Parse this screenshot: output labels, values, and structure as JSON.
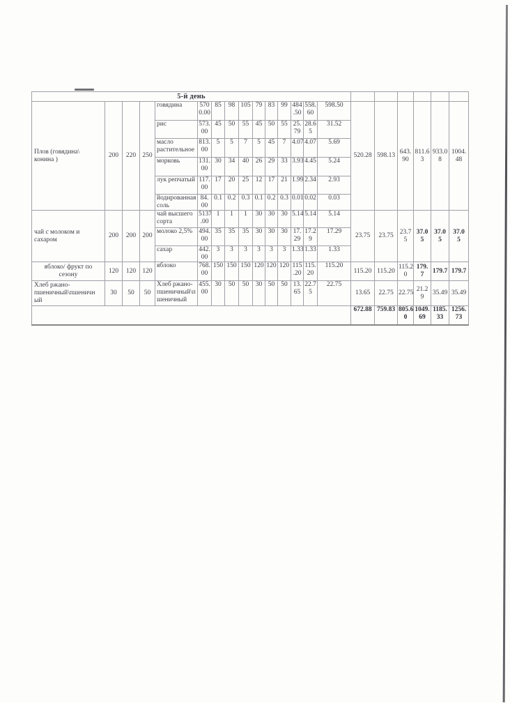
{
  "table": {
    "day_header": "5-й день",
    "groups": [
      {
        "dish": "Плов (говядина\\\nконина )",
        "dish_center": false,
        "portions": [
          "200",
          "220",
          "250"
        ],
        "rows": [
          {
            "name": "говядина",
            "gross": "570\n0.00",
            "vals": [
              "85",
              "98",
              "105",
              "79",
              "83",
              "99",
              "484\n.50",
              "558.\n60",
              "598.50"
            ]
          },
          {
            "name": "рис",
            "gross": "573.\n00",
            "vals": [
              "45",
              "50",
              "55",
              "45",
              "50",
              "55",
              "25.\n79",
              "28.6\n5",
              "31.52"
            ]
          },
          {
            "name": "масло\nрастительное",
            "gross": "813.\n00",
            "vals": [
              "5",
              "5",
              "7",
              "5",
              "45",
              "7",
              "4.07",
              "4.07",
              "5.69"
            ]
          },
          {
            "name": "морковь",
            "gross": "131.\n00",
            "vals": [
              "30",
              "34",
              "40",
              "26",
              "29",
              "33",
              "3.93",
              "4.45",
              "5.24"
            ]
          },
          {
            "name": "лук репчатый",
            "gross": "117.\n00",
            "vals": [
              "17",
              "20",
              "25",
              "12",
              "17",
              "21",
              "1.99",
              "2.34",
              "2.93"
            ]
          },
          {
            "name": "йодированная\nсоль",
            "gross": "84.\n00",
            "vals": [
              "0.1",
              "0.2",
              "0.3",
              "0.1",
              "0.2",
              "0.3",
              "0.01",
              "0.02",
              "0.03"
            ]
          }
        ],
        "totals": [
          "520.28",
          "598.13",
          "643.\n90",
          "811.6\n3",
          "933.0\n8",
          "1004.\n48"
        ],
        "totals_bold": [
          false,
          false,
          false,
          false,
          false,
          false
        ]
      },
      {
        "dish": "чай с молоком и\nсахаром",
        "dish_center": false,
        "portions": [
          "200",
          "200",
          "200"
        ],
        "rows": [
          {
            "name": "чай высшего\nсорта",
            "gross": "5137\n.00",
            "vals": [
              "1",
              "1",
              "1",
              "30",
              "30",
              "30",
              "5.14",
              "5.14",
              "5.14"
            ]
          },
          {
            "name": "молоко 2,5%",
            "gross": "494.\n00",
            "vals": [
              "35",
              "35",
              "35",
              "30",
              "30",
              "30",
              "17.\n29",
              "17.2\n9",
              "17.29"
            ]
          },
          {
            "name": "сахар",
            "gross": "442.\n00",
            "vals": [
              "3",
              "3",
              "3",
              "3",
              "3",
              "3",
              "1.33",
              "1.33",
              "1.33"
            ]
          }
        ],
        "totals": [
          "23.75",
          "23.75",
          "23.7\n5",
          "37.0\n5",
          "37.0\n5",
          "37.0\n5"
        ],
        "totals_bold": [
          false,
          false,
          false,
          true,
          true,
          true
        ]
      },
      {
        "dish": "яблоко/ фрукт по\nсезону",
        "dish_center": true,
        "portions": [
          "120",
          "120",
          "120"
        ],
        "rows": [
          {
            "name": "яблоко",
            "gross": "768.\n00",
            "vals": [
              "150",
              "150",
              "150",
              "120",
              "120",
              "120",
              "115\n.20",
              "115.\n20",
              "115.20"
            ]
          }
        ],
        "totals": [
          "115.20",
          "115.20",
          "115.2\n0",
          "179.\n7",
          "179.7",
          "179.7"
        ],
        "totals_bold": [
          false,
          false,
          false,
          true,
          true,
          true
        ]
      },
      {
        "dish": "Хлеб ржано-\nпшеничный\\пшеничн\nый",
        "dish_center": false,
        "portions": [
          "30",
          "50",
          "50"
        ],
        "rows": [
          {
            "name": "Хлеб ржано-\nпшеничный\\п\nшеничный",
            "gross": "455.\n00",
            "vals": [
              "30",
              "50",
              "50",
              "30",
              "50",
              "50",
              "13.\n65",
              "22.7\n5",
              "22.75"
            ]
          }
        ],
        "totals": [
          "13.65",
          "22.75",
          "22.75",
          "21.2\n9",
          "35.49",
          "35.49"
        ],
        "totals_bold": [
          false,
          false,
          false,
          false,
          false,
          false
        ]
      }
    ],
    "grand_totals": [
      "672.88",
      "759.83",
      "805.6\n0",
      "1049.\n69",
      "1185.\n33",
      "1256.\n73"
    ]
  }
}
